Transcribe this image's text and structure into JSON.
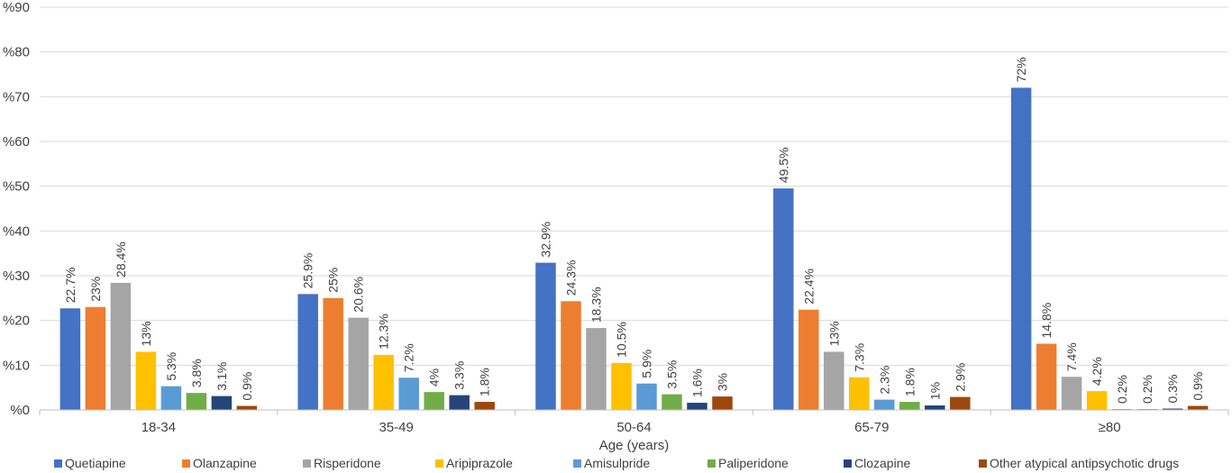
{
  "chart_data": {
    "type": "bar",
    "xlabel": "Age (years)",
    "ylabel": "",
    "ylim": [
      0,
      90
    ],
    "y_ticks": [
      0,
      10,
      20,
      30,
      40,
      50,
      60,
      70,
      80,
      90
    ],
    "y_tick_labels": [
      "%0",
      "%10",
      "%20",
      "%30",
      "%40",
      "%50",
      "%60",
      "%70",
      "%80",
      "%90"
    ],
    "grid": true,
    "legend_position": "bottom",
    "categories": [
      "18-34",
      "35-49",
      "50-64",
      "65-79",
      "≥80"
    ],
    "series": [
      {
        "name": "Quetiapine",
        "color": "#4472C4",
        "values": [
          22.7,
          25.9,
          32.9,
          49.5,
          72
        ],
        "labels": [
          "22.7%",
          "25.9%",
          "32.9%",
          "49.5%",
          "72%"
        ]
      },
      {
        "name": "Olanzapine",
        "color": "#ED7D31",
        "values": [
          23,
          25,
          24.3,
          22.4,
          14.8
        ],
        "labels": [
          "23%",
          "25%",
          "24.3%",
          "22.4%",
          "14.8%"
        ]
      },
      {
        "name": "Risperidone",
        "color": "#A5A5A5",
        "values": [
          28.4,
          20.6,
          18.3,
          13,
          7.4
        ],
        "labels": [
          "28.4%",
          "20.6%",
          "18.3%",
          "13%",
          "7.4%"
        ]
      },
      {
        "name": "Aripiprazole",
        "color": "#FFC000",
        "values": [
          13,
          12.3,
          10.5,
          7.3,
          4.2
        ],
        "labels": [
          "13%",
          "12.3%",
          "10.5%",
          "7.3%",
          "4.2%"
        ]
      },
      {
        "name": "Amisulpride",
        "color": "#5B9BD5",
        "values": [
          5.3,
          7.2,
          5.9,
          2.3,
          0.2
        ],
        "labels": [
          "5.3%",
          "7.2%",
          "5.9%",
          "2.3%",
          "0.2%"
        ]
      },
      {
        "name": "Paliperidone",
        "color": "#70AD47",
        "values": [
          3.8,
          4,
          3.5,
          1.8,
          0.2
        ],
        "labels": [
          "3.8%",
          "4%",
          "3.5%",
          "1.8%",
          "0.2%"
        ]
      },
      {
        "name": "Clozapine",
        "color": "#264478",
        "values": [
          3.1,
          3.3,
          1.6,
          1,
          0.3
        ],
        "labels": [
          "3.1%",
          "3.3%",
          "1.6%",
          "1%",
          "0.3%"
        ]
      },
      {
        "name": "Other atypical antipsychotic drugs",
        "color": "#9E480E",
        "values": [
          0.9,
          1.8,
          3,
          2.9,
          0.9
        ],
        "labels": [
          "0.9%",
          "1.8%",
          "3%",
          "2.9%",
          "0.9%"
        ]
      }
    ]
  }
}
